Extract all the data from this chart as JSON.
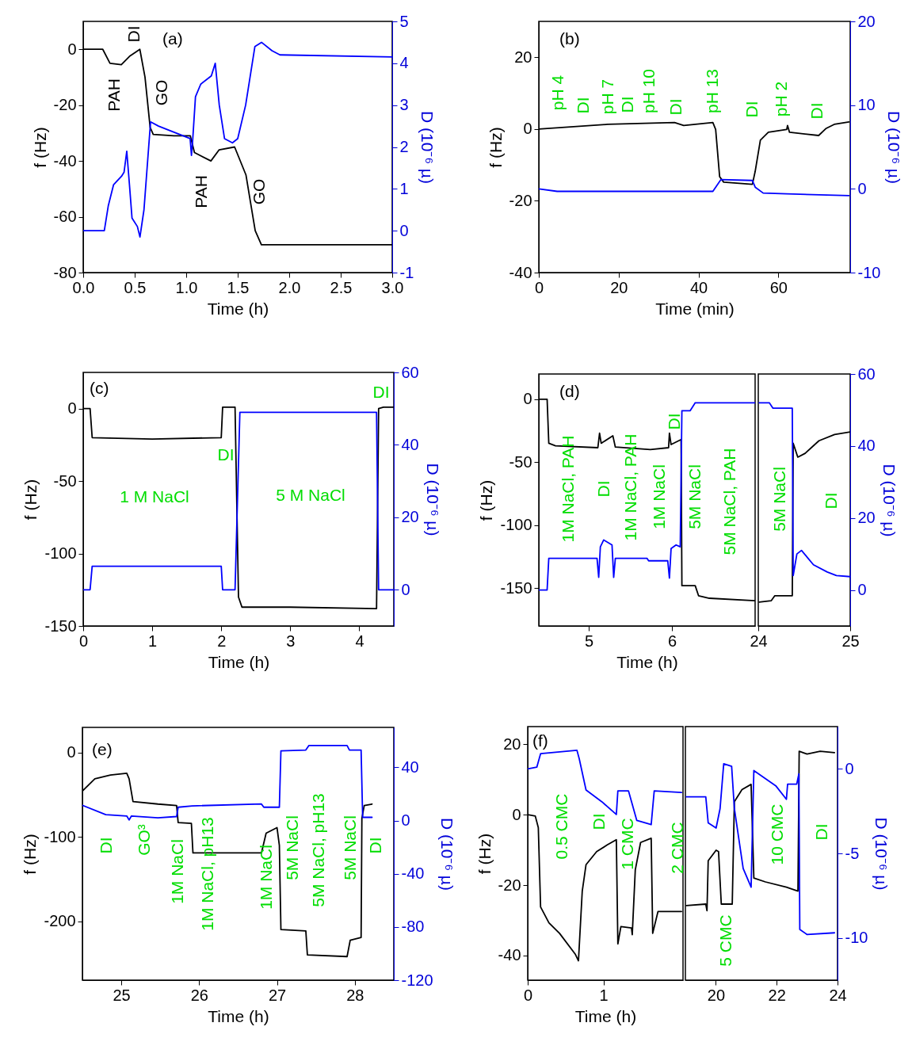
{
  "chart_data": [
    {
      "type": "line",
      "title": "(a)",
      "xlabel": "Time (h)",
      "ylabel": "f (Hz)",
      "y2label": "D (10⁻⁶ µ)",
      "xlim": [
        0,
        3
      ],
      "xticks": [
        {
          "value": 0,
          "label": "0.0"
        },
        {
          "value": 0.5,
          "label": "0.5"
        },
        {
          "value": 1,
          "label": "1.0"
        },
        {
          "value": 1.5,
          "label": "1.5"
        },
        {
          "value": 2,
          "label": "2.0"
        },
        {
          "value": 2.5,
          "label": "2.5"
        },
        {
          "value": 3,
          "label": "3.0"
        }
      ],
      "ylim": [
        -80,
        10
      ],
      "yticks": [
        -80,
        -60,
        -40,
        -20,
        0
      ],
      "y2lim": [
        -1,
        5
      ],
      "y2ticks": [
        -1,
        0,
        1,
        2,
        3,
        4,
        5
      ],
      "series": [
        {
          "color": "#000000",
          "x": [
            0,
            0.19,
            0.26,
            0.37,
            0.45,
            0.55,
            0.6,
            0.65,
            0.68,
            0.88,
            1.04,
            1.08,
            1.24,
            1.32,
            1.47,
            1.58,
            1.67,
            1.73,
            3
          ],
          "values": [
            0,
            0,
            -5,
            -5.5,
            -2.5,
            0,
            -10,
            -28,
            -30.5,
            -31,
            -31,
            -37,
            -40,
            -36,
            -35,
            -45,
            -65,
            -70,
            -70
          ]
        },
        {
          "color": "#0000ff",
          "axis": "y2",
          "x": [
            0,
            0.205,
            0.244,
            0.295,
            0.372,
            0.397,
            0.423,
            0.449,
            0.474,
            0.526,
            0.551,
            0.59,
            0.654,
            0.731,
            0.833,
            0.936,
            1.038,
            1.051,
            1.064,
            1.09,
            1.141,
            1.244,
            1.282,
            1.321,
            1.372,
            1.449,
            1.5,
            1.577,
            1.667,
            1.731,
            1.833,
            1.91,
            3
          ],
          "values": [
            0,
            0,
            0.6,
            1.1,
            1.3,
            1.4,
            1.9,
            1.1,
            0.3,
            0.1,
            -0.15,
            0.5,
            2.6,
            2.5,
            2.4,
            2.3,
            2.2,
            1.8,
            2.2,
            3.2,
            3.5,
            3.7,
            4,
            3,
            2.2,
            2.1,
            2.2,
            3,
            4.4,
            4.5,
            4.3,
            4.2,
            4.15
          ]
        }
      ],
      "annotations": [
        "PAH",
        "DI",
        "GO",
        "PAH",
        "GO"
      ]
    },
    {
      "type": "line",
      "title": "(b)",
      "xlabel": "Time (min)",
      "ylabel": "f (Hz)",
      "y2label": "D (10⁻⁶ µ)",
      "xlim": [
        0,
        78
      ],
      "xticks": [
        0,
        20,
        40,
        60
      ],
      "ylim": [
        -40,
        30
      ],
      "yticks": [
        -40,
        -20,
        0,
        20
      ],
      "y2lim": [
        -10,
        20
      ],
      "y2ticks": [
        -10,
        0,
        10,
        20
      ],
      "series": [
        {
          "color": "#000000",
          "x": [
            0,
            17.2,
            34,
            36.3,
            43.6,
            44.3,
            45.3,
            46.3,
            53.5,
            54.2,
            55.5,
            57.5,
            62.1,
            62.3,
            62.8,
            70.1,
            72,
            74,
            77.7
          ],
          "values": [
            0,
            1.3,
            1.8,
            1,
            1.8,
            -0.1,
            -13.3,
            -14.8,
            -15.4,
            -11.8,
            -3.1,
            -0.9,
            -0.1,
            1,
            -0.9,
            -1.8,
            0.2,
            1.3,
            2
          ]
        },
        {
          "color": "#0000ff",
          "axis": "y2",
          "x": [
            0,
            4.6,
            29.1,
            43.6,
            45.6,
            53.5,
            54.2,
            56.2,
            62.1,
            77.7
          ],
          "values": [
            0,
            -0.3,
            -0.3,
            -0.3,
            1.1,
            1,
            0.2,
            -0.5,
            -0.6,
            -0.8
          ]
        }
      ],
      "annotations": [
        "pH 4",
        "DI",
        "pH 7",
        "DI",
        "pH 10",
        "DI",
        "pH 13",
        "DI",
        "pH 2",
        "DI"
      ]
    },
    {
      "type": "line",
      "title": "(c)",
      "xlabel": "Time (h)",
      "ylabel": "f (Hz)",
      "y2label": "D (10⁻⁶ µ)",
      "xlim": [
        0,
        4.5
      ],
      "xticks": [
        0,
        1,
        2,
        3,
        4
      ],
      "ylim": [
        -150,
        25
      ],
      "yticks": [
        -150,
        -100,
        -50,
        0
      ],
      "y2lim": [
        -10,
        60
      ],
      "y2ticks": [
        0,
        20,
        40,
        60
      ],
      "series": [
        {
          "color": "#000000",
          "x": [
            0,
            0.1,
            0.13,
            1,
            2,
            2.02,
            2.2,
            2.25,
            2.3,
            3,
            4.25,
            4.28,
            4.35,
            4.5
          ],
          "values": [
            0,
            0,
            -20,
            -21,
            -20,
            1,
            1,
            -130,
            -137,
            -137,
            -138,
            0,
            1,
            1
          ]
        },
        {
          "color": "#0000ff",
          "axis": "y2",
          "x": [
            0,
            0.1,
            0.13,
            2,
            2.02,
            2.2,
            2.27,
            3,
            4.25,
            4.28,
            4.5
          ],
          "values": [
            0,
            0,
            6.5,
            6.5,
            0,
            0,
            49,
            49,
            49,
            0,
            0
          ]
        }
      ],
      "annotations": [
        "1 M NaCl",
        "DI",
        "5 M NaCl",
        "DI"
      ]
    },
    {
      "type": "line",
      "title": "(d)",
      "xlabel": "Time (h)",
      "ylabel": "f (Hz)",
      "tick_labels": "xy",
      "xlim": [
        4.4,
        7
      ],
      "xticks": [
        5,
        6
      ],
      "ylim": [
        -180,
        20
      ],
      "yticks": [
        -150,
        -100,
        -50,
        0
      ],
      "y2lim": [
        -10,
        60
      ],
      "series": [
        {
          "color": "#000000",
          "x": [
            4.4,
            4.5,
            4.52,
            4.6,
            5.11,
            5.13,
            5.15,
            5.29,
            5.32,
            5.74,
            5.96,
            5.97,
            5.99,
            6.11,
            6.12,
            6.28,
            6.32,
            6.45,
            7
          ],
          "values": [
            0,
            0,
            -35,
            -37,
            -38.5,
            -27,
            -35,
            -29,
            -38,
            -40,
            -38.5,
            -27,
            -36,
            -32,
            -148,
            -148,
            -156,
            -158,
            -160
          ]
        },
        {
          "color": "#0000ff",
          "axis": "y2",
          "x": [
            4.4,
            4.5,
            4.52,
            5.1,
            5.12,
            5.14,
            5.18,
            5.28,
            5.3,
            5.32,
            5.7,
            5.72,
            5.95,
            5.97,
            5.99,
            6.05,
            6.1,
            6.12,
            6.22,
            6.28,
            7
          ],
          "values": [
            0,
            0,
            8.8,
            8.8,
            3.5,
            12,
            13.9,
            12.5,
            3.5,
            8.8,
            8.8,
            8.1,
            8.1,
            3.3,
            11.5,
            12.5,
            12,
            49.8,
            49.8,
            52,
            52
          ]
        }
      ],
      "annotations": [
        "1M NaCl, PAH",
        "DI",
        "1M NaCl, PAH",
        "1M NaCl",
        "DI",
        "5M NaCl",
        "5M NaCl, PAH"
      ]
    },
    {
      "type": "line",
      "y2label": "D (10⁻⁶ µ)",
      "tick_labels": "xy2",
      "xlim": [
        24,
        25
      ],
      "xticks": [
        24,
        25
      ],
      "ylim": [
        -180,
        20
      ],
      "y2lim": [
        -10,
        60
      ],
      "y2ticks": [
        0,
        20,
        40,
        60
      ],
      "series": [
        {
          "color": "#000000",
          "x": [
            24.01,
            24.14,
            24.18,
            24.37,
            24.38,
            24.43,
            24.51,
            24.66,
            24.83,
            25
          ],
          "values": [
            -161,
            -160,
            -156,
            -156,
            -35,
            -46,
            -43,
            -33,
            -28,
            -26
          ]
        },
        {
          "color": "#0000ff",
          "axis": "y2",
          "x": [
            24.01,
            24.12,
            24.16,
            24.37,
            24.38,
            24.42,
            24.47,
            24.6,
            24.75,
            24.85,
            25
          ],
          "values": [
            52,
            52,
            50.5,
            50.5,
            4,
            10,
            11,
            7,
            5,
            4,
            3.7
          ]
        }
      ],
      "annotations": [
        "5M NaCl",
        "DI"
      ]
    },
    {
      "type": "line",
      "title": "(e)",
      "xlabel": "Time (h)",
      "ylabel": "f (Hz)",
      "y2label": "D (10⁻⁶ µ)",
      "xlim": [
        24.5,
        28.5
      ],
      "xticks": [
        25,
        26,
        27,
        28
      ],
      "ylim": [
        -270,
        30
      ],
      "yticks": [
        -200,
        -100,
        0
      ],
      "y2lim": [
        -120,
        70
      ],
      "y2ticks": [
        -120,
        -80,
        -40,
        0,
        40
      ],
      "series": [
        {
          "color": "#000000",
          "x": [
            24.5,
            24.66,
            24.86,
            25.07,
            25.1,
            25.15,
            25.47,
            25.71,
            25.73,
            25.9,
            25.92,
            26.8,
            26.86,
            27,
            27.03,
            27.05,
            27.37,
            27.39,
            27.9,
            27.94,
            28.08,
            28.09,
            28.12,
            28.22
          ],
          "values": [
            -45.5,
            -31,
            -26.6,
            -24.5,
            -31,
            -58,
            -61,
            -62.7,
            -83,
            -84,
            -119,
            -119,
            -95.6,
            -89,
            -110,
            -210,
            -211.6,
            -240,
            -242,
            -222.6,
            -219.4,
            -78,
            -62.7,
            -61
          ]
        },
        {
          "color": "#0000ff",
          "axis": "y2",
          "x": [
            24.5,
            24.8,
            25.07,
            25.1,
            25.13,
            25.47,
            25.71,
            25.73,
            25.91,
            26.8,
            26.83,
            27.03,
            27.05,
            27.37,
            27.41,
            27.9,
            27.93,
            28.08,
            28.1,
            28.22
          ],
          "values": [
            11.4,
            4.4,
            3.4,
            0.4,
            3.4,
            2,
            3,
            10,
            11,
            12.4,
            10,
            10,
            52.4,
            53,
            56.4,
            56.4,
            53,
            53,
            2.4,
            2.4
          ]
        }
      ],
      "annotations": [
        "DI",
        "GO³",
        "1M NaCl",
        "1M NaCl, pH13",
        "1M NaCl",
        "5M NaCl",
        "5M NaCl, pH13",
        "5M NaCl",
        "DI"
      ]
    },
    {
      "type": "line",
      "title": "(f)",
      "xlabel": "Time (h)",
      "ylabel": "f (Hz)",
      "tick_labels": "xy",
      "xlim": [
        0,
        2.05
      ],
      "xticks": [
        0,
        1
      ],
      "ylim": [
        -47,
        25
      ],
      "yticks": [
        -40,
        -20,
        0,
        20
      ],
      "y2lim": [
        -12.5,
        2.5
      ],
      "series": [
        {
          "color": "#000000",
          "x": [
            0,
            0.1,
            0.14,
            0.17,
            0.28,
            0.42,
            0.63,
            0.67,
            0.72,
            0.77,
            0.91,
            1.05,
            1.17,
            1.19,
            1.23,
            1.37,
            1.38,
            1.42,
            1.49,
            1.63,
            1.65,
            1.72,
            2.03
          ],
          "values": [
            0,
            -0.4,
            -3.7,
            -26.2,
            -30.7,
            -33.7,
            -39.7,
            -41.5,
            -21.7,
            -14.2,
            -10.5,
            -8.6,
            -7.1,
            -36.7,
            -31.8,
            -32.2,
            -34.1,
            -15.7,
            -7.9,
            -6.7,
            -33.7,
            -27.5,
            -27.5
          ]
        },
        {
          "color": "#0000ff",
          "axis": "y2",
          "x": [
            0,
            0.12,
            0.17,
            0.65,
            0.68,
            0.77,
            0.98,
            1.17,
            1.19,
            1.33,
            1.44,
            1.63,
            1.67,
            2.03
          ],
          "values": [
            0,
            0.1,
            0.9,
            1.1,
            0.6,
            -1.25,
            -1.95,
            -2.7,
            -1.3,
            -1.3,
            -3.05,
            -3.3,
            -1.3,
            -1.4
          ]
        }
      ],
      "annotations": [
        "0.5 CMC",
        "DI",
        "1 CMC",
        "2 CMC"
      ]
    },
    {
      "type": "line",
      "y2label": "D (10⁻⁶ µ)",
      "tick_labels": "xy2",
      "xlim": [
        19,
        24
      ],
      "xticks": [
        20,
        22,
        24
      ],
      "ylim": [
        -47,
        25
      ],
      "y2lim": [
        -12.5,
        2.5
      ],
      "y2ticks": [
        -10,
        -5,
        0
      ],
      "series": [
        {
          "color": "#000000",
          "x": [
            19.03,
            19.67,
            19.71,
            19.75,
            20.01,
            20.09,
            20.18,
            20.54,
            20.61,
            20.86,
            21.16,
            21.25,
            21.63,
            22.32,
            22.7,
            22.74,
            23,
            23.43,
            23.9
          ],
          "values": [
            -25.8,
            -25.4,
            -27.3,
            -13.1,
            -10.1,
            -10.5,
            -25.4,
            -25.4,
            3.7,
            7.1,
            8.6,
            -18,
            -19.1,
            -20.6,
            -21.7,
            18,
            17.2,
            18,
            17.6
          ]
        },
        {
          "color": "#0000ff",
          "axis": "y2",
          "x": [
            19.03,
            19.67,
            19.75,
            20.01,
            20.14,
            20.26,
            20.52,
            20.61,
            20.9,
            21.16,
            21.25,
            21.97,
            22.32,
            22.36,
            22.66,
            22.73,
            22.76,
            23,
            23.9
          ],
          "values": [
            -1.65,
            -1.65,
            -3.2,
            -3.5,
            -2.35,
            0.3,
            0.15,
            -2.35,
            -5.9,
            -7,
            -0.1,
            -1,
            -1.8,
            -0.9,
            -0.9,
            -0.3,
            -9.5,
            -9.8,
            -9.7
          ]
        }
      ],
      "annotations": [
        "5 CMC",
        "10 CMC",
        "DI"
      ]
    }
  ]
}
